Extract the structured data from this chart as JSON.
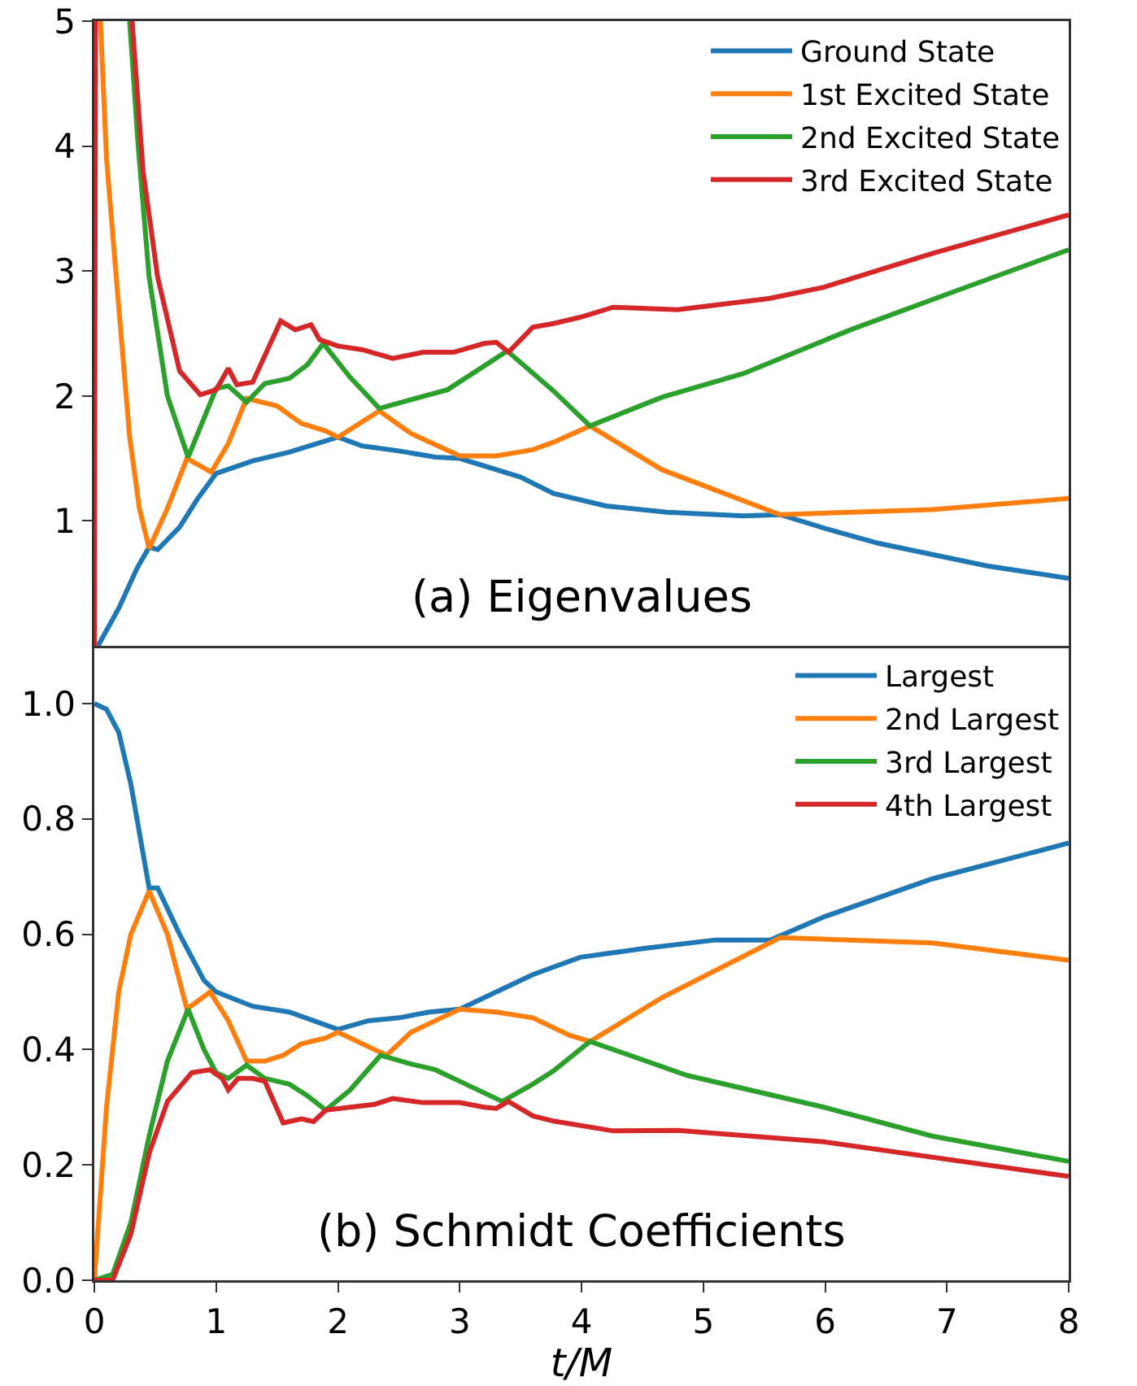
{
  "chart_data": [
    {
      "type": "line",
      "xlim": [
        0,
        8
      ],
      "ylim": [
        0,
        5
      ],
      "yticks": [
        1,
        2,
        3,
        4,
        5
      ],
      "tick_labels": "y",
      "grid": false,
      "legend": "top right",
      "line_style": "solid",
      "marker": "none",
      "annotations": [
        "(a) Eigenvalues"
      ],
      "series": [
        {
          "name": "Ground State",
          "color": "#1f77b4",
          "x": [
            0.03,
            0.2,
            0.35,
            0.45,
            0.52,
            0.7,
            0.85,
            1.0,
            1.3,
            1.6,
            2.0,
            2.2,
            2.5,
            2.8,
            3.0,
            3.5,
            3.77,
            4.2,
            4.7,
            5.33,
            5.63,
            6.0,
            6.44,
            7.33,
            8
          ],
          "values": [
            0,
            0.3,
            0.62,
            0.79,
            0.77,
            0.95,
            1.18,
            1.38,
            1.48,
            1.55,
            1.67,
            1.6,
            1.56,
            1.51,
            1.5,
            1.35,
            1.22,
            1.12,
            1.07,
            1.04,
            1.05,
            0.94,
            0.82,
            0.64,
            0.54
          ]
        },
        {
          "name": "1st Excited State",
          "color": "#ff7f0e",
          "x": [
            0.05,
            0.1,
            0.18,
            0.29,
            0.37,
            0.45,
            0.6,
            0.76,
            0.96,
            1.1,
            1.25,
            1.5,
            1.7,
            1.9,
            2.0,
            2.34,
            2.6,
            3.0,
            3.3,
            3.6,
            3.77,
            4.07,
            4.66,
            5.63,
            6.88,
            8
          ],
          "values": [
            5,
            3.9,
            2.95,
            1.67,
            1.1,
            0.78,
            1.1,
            1.5,
            1.39,
            1.62,
            1.98,
            1.92,
            1.78,
            1.72,
            1.67,
            1.88,
            1.7,
            1.52,
            1.52,
            1.57,
            1.63,
            1.76,
            1.41,
            1.05,
            1.09,
            1.18
          ]
        },
        {
          "name": "2nd Excited State",
          "color": "#2ca02c",
          "x": [
            0.29,
            0.36,
            0.45,
            0.6,
            0.77,
            1.0,
            1.1,
            1.25,
            1.4,
            1.6,
            1.75,
            1.88,
            2.1,
            2.34,
            2.6,
            2.9,
            3.39,
            3.77,
            4.07,
            4.66,
            5.33,
            6.21,
            7.1,
            8
          ],
          "values": [
            5,
            4.0,
            2.95,
            2.0,
            1.51,
            2.06,
            2.08,
            1.95,
            2.1,
            2.14,
            2.25,
            2.42,
            2.15,
            1.9,
            1.97,
            2.05,
            2.36,
            2.04,
            1.76,
            1.99,
            2.18,
            2.53,
            2.85,
            3.17
          ]
        },
        {
          "name": "3rd Excited State",
          "color": "#d62728",
          "x": [
            0,
            0.01,
            0.15,
            0.31,
            0.4,
            0.52,
            0.7,
            0.87,
            1.0,
            1.1,
            1.17,
            1.3,
            1.53,
            1.65,
            1.78,
            1.85,
            2.0,
            2.2,
            2.45,
            2.7,
            2.95,
            3.2,
            3.3,
            3.4,
            3.6,
            3.77,
            3.99,
            4.26,
            4.79,
            5.54,
            5.99,
            6.88,
            8
          ],
          "values": [
            0,
            5,
            null,
            5,
            3.8,
            2.95,
            2.2,
            2.01,
            2.05,
            2.22,
            2.09,
            2.11,
            2.6,
            2.53,
            2.57,
            2.45,
            2.4,
            2.37,
            2.3,
            2.35,
            2.35,
            2.42,
            2.43,
            2.35,
            2.55,
            2.58,
            2.63,
            2.71,
            2.69,
            2.78,
            2.87,
            3.14,
            3.45
          ]
        }
      ]
    },
    {
      "type": "line",
      "xlim": [
        0,
        8
      ],
      "xticks": [
        0,
        1,
        2,
        3,
        4,
        5,
        6,
        7,
        8
      ],
      "ylim": [
        0,
        1.1
      ],
      "yticks": [
        {
          "value": 0,
          "label": "0.0"
        },
        {
          "value": 0.2,
          "label": "0.2"
        },
        {
          "value": 0.4,
          "label": "0.4"
        },
        {
          "value": 0.6,
          "label": "0.6"
        },
        {
          "value": 0.8,
          "label": "0.8"
        },
        {
          "value": 1,
          "label": "1.0"
        }
      ],
      "xlabel": "t/M",
      "grid": false,
      "legend": "top right",
      "line_style": "solid",
      "marker": "none",
      "annotations": [
        "(b) Schmidt Coefficients"
      ],
      "series": [
        {
          "name": "Largest",
          "color": "#1f77b4",
          "x": [
            0,
            0.1,
            0.2,
            0.3,
            0.45,
            0.52,
            0.7,
            0.9,
            1.0,
            1.3,
            1.6,
            2.0,
            2.25,
            2.5,
            2.75,
            3.0,
            3.3,
            3.6,
            3.99,
            4.5,
            5.1,
            5.55,
            5.99,
            6.88,
            8
          ],
          "values": [
            1.0,
            0.99,
            0.95,
            0.86,
            0.68,
            0.68,
            0.6,
            0.52,
            0.5,
            0.475,
            0.465,
            0.435,
            0.45,
            0.455,
            0.465,
            0.47,
            0.5,
            0.53,
            0.56,
            0.575,
            0.59,
            0.59,
            0.63,
            0.696,
            0.758
          ]
        },
        {
          "name": "2nd Largest",
          "color": "#ff7f0e",
          "x": [
            0,
            0.1,
            0.2,
            0.3,
            0.45,
            0.6,
            0.76,
            0.95,
            1.1,
            1.25,
            1.4,
            1.55,
            1.7,
            1.9,
            2.0,
            2.2,
            2.4,
            2.6,
            2.8,
            3.0,
            3.3,
            3.6,
            3.9,
            4.07,
            4.66,
            5.63,
            6.88,
            8
          ],
          "values": [
            0,
            0.3,
            0.5,
            0.6,
            0.675,
            0.6,
            0.47,
            0.5,
            0.45,
            0.38,
            0.38,
            0.39,
            0.41,
            0.42,
            0.43,
            0.41,
            0.39,
            0.43,
            0.45,
            0.47,
            0.465,
            0.455,
            0.425,
            0.414,
            0.49,
            0.594,
            0.585,
            0.555
          ]
        },
        {
          "name": "3rd Largest",
          "color": "#2ca02c",
          "x": [
            0,
            0.15,
            0.3,
            0.45,
            0.6,
            0.77,
            0.9,
            1.0,
            1.1,
            1.25,
            1.4,
            1.6,
            1.75,
            1.9,
            2.1,
            2.35,
            2.6,
            2.8,
            3.0,
            3.35,
            3.6,
            3.77,
            4.07,
            4.87,
            5.99,
            6.88,
            8
          ],
          "values": [
            0,
            0.01,
            0.1,
            0.25,
            0.38,
            0.47,
            0.4,
            0.36,
            0.35,
            0.373,
            0.35,
            0.34,
            0.32,
            0.295,
            0.33,
            0.39,
            0.375,
            0.365,
            0.345,
            0.31,
            0.34,
            0.363,
            0.414,
            0.355,
            0.3,
            0.25,
            0.206
          ]
        },
        {
          "name": "4th Largest",
          "color": "#d62728",
          "x": [
            0,
            0.15,
            0.3,
            0.45,
            0.6,
            0.8,
            0.95,
            1.05,
            1.1,
            1.18,
            1.3,
            1.4,
            1.55,
            1.7,
            1.8,
            1.9,
            2.1,
            2.3,
            2.45,
            2.7,
            3.0,
            3.2,
            3.3,
            3.4,
            3.6,
            3.77,
            4.26,
            4.79,
            5.99,
            8
          ],
          "values": [
            0,
            0,
            0.08,
            0.22,
            0.31,
            0.36,
            0.365,
            0.35,
            0.33,
            0.35,
            0.35,
            0.345,
            0.273,
            0.28,
            0.275,
            0.295,
            0.3,
            0.305,
            0.315,
            0.308,
            0.308,
            0.3,
            0.298,
            0.31,
            0.285,
            0.276,
            0.259,
            0.26,
            0.24,
            0.18
          ]
        }
      ]
    }
  ]
}
